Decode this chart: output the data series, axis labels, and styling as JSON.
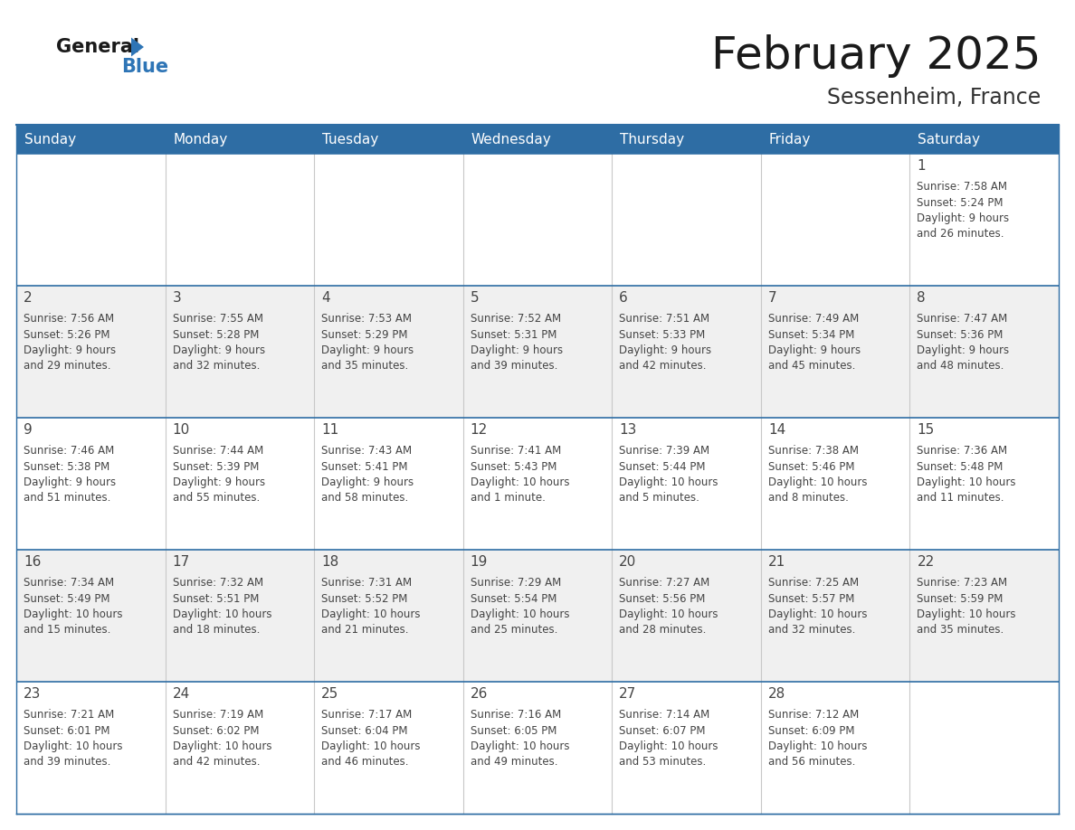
{
  "title": "February 2025",
  "subtitle": "Sessenheim, France",
  "header_bg": "#2E6DA4",
  "header_text_color": "#FFFFFF",
  "cell_bg_white": "#FFFFFF",
  "cell_bg_light": "#F0F0F0",
  "page_bg": "#FFFFFF",
  "border_color": "#2E6DA4",
  "cell_line_color": "#AAAAAA",
  "text_color": "#444444",
  "days_of_week": [
    "Sunday",
    "Monday",
    "Tuesday",
    "Wednesday",
    "Thursday",
    "Friday",
    "Saturday"
  ],
  "logo_general_color": "#1a1a1a",
  "logo_blue_color": "#2E75B6",
  "calendar_data": [
    [
      {
        "day": null,
        "info": null
      },
      {
        "day": null,
        "info": null
      },
      {
        "day": null,
        "info": null
      },
      {
        "day": null,
        "info": null
      },
      {
        "day": null,
        "info": null
      },
      {
        "day": null,
        "info": null
      },
      {
        "day": 1,
        "info": "Sunrise: 7:58 AM\nSunset: 5:24 PM\nDaylight: 9 hours\nand 26 minutes."
      }
    ],
    [
      {
        "day": 2,
        "info": "Sunrise: 7:56 AM\nSunset: 5:26 PM\nDaylight: 9 hours\nand 29 minutes."
      },
      {
        "day": 3,
        "info": "Sunrise: 7:55 AM\nSunset: 5:28 PM\nDaylight: 9 hours\nand 32 minutes."
      },
      {
        "day": 4,
        "info": "Sunrise: 7:53 AM\nSunset: 5:29 PM\nDaylight: 9 hours\nand 35 minutes."
      },
      {
        "day": 5,
        "info": "Sunrise: 7:52 AM\nSunset: 5:31 PM\nDaylight: 9 hours\nand 39 minutes."
      },
      {
        "day": 6,
        "info": "Sunrise: 7:51 AM\nSunset: 5:33 PM\nDaylight: 9 hours\nand 42 minutes."
      },
      {
        "day": 7,
        "info": "Sunrise: 7:49 AM\nSunset: 5:34 PM\nDaylight: 9 hours\nand 45 minutes."
      },
      {
        "day": 8,
        "info": "Sunrise: 7:47 AM\nSunset: 5:36 PM\nDaylight: 9 hours\nand 48 minutes."
      }
    ],
    [
      {
        "day": 9,
        "info": "Sunrise: 7:46 AM\nSunset: 5:38 PM\nDaylight: 9 hours\nand 51 minutes."
      },
      {
        "day": 10,
        "info": "Sunrise: 7:44 AM\nSunset: 5:39 PM\nDaylight: 9 hours\nand 55 minutes."
      },
      {
        "day": 11,
        "info": "Sunrise: 7:43 AM\nSunset: 5:41 PM\nDaylight: 9 hours\nand 58 minutes."
      },
      {
        "day": 12,
        "info": "Sunrise: 7:41 AM\nSunset: 5:43 PM\nDaylight: 10 hours\nand 1 minute."
      },
      {
        "day": 13,
        "info": "Sunrise: 7:39 AM\nSunset: 5:44 PM\nDaylight: 10 hours\nand 5 minutes."
      },
      {
        "day": 14,
        "info": "Sunrise: 7:38 AM\nSunset: 5:46 PM\nDaylight: 10 hours\nand 8 minutes."
      },
      {
        "day": 15,
        "info": "Sunrise: 7:36 AM\nSunset: 5:48 PM\nDaylight: 10 hours\nand 11 minutes."
      }
    ],
    [
      {
        "day": 16,
        "info": "Sunrise: 7:34 AM\nSunset: 5:49 PM\nDaylight: 10 hours\nand 15 minutes."
      },
      {
        "day": 17,
        "info": "Sunrise: 7:32 AM\nSunset: 5:51 PM\nDaylight: 10 hours\nand 18 minutes."
      },
      {
        "day": 18,
        "info": "Sunrise: 7:31 AM\nSunset: 5:52 PM\nDaylight: 10 hours\nand 21 minutes."
      },
      {
        "day": 19,
        "info": "Sunrise: 7:29 AM\nSunset: 5:54 PM\nDaylight: 10 hours\nand 25 minutes."
      },
      {
        "day": 20,
        "info": "Sunrise: 7:27 AM\nSunset: 5:56 PM\nDaylight: 10 hours\nand 28 minutes."
      },
      {
        "day": 21,
        "info": "Sunrise: 7:25 AM\nSunset: 5:57 PM\nDaylight: 10 hours\nand 32 minutes."
      },
      {
        "day": 22,
        "info": "Sunrise: 7:23 AM\nSunset: 5:59 PM\nDaylight: 10 hours\nand 35 minutes."
      }
    ],
    [
      {
        "day": 23,
        "info": "Sunrise: 7:21 AM\nSunset: 6:01 PM\nDaylight: 10 hours\nand 39 minutes."
      },
      {
        "day": 24,
        "info": "Sunrise: 7:19 AM\nSunset: 6:02 PM\nDaylight: 10 hours\nand 42 minutes."
      },
      {
        "day": 25,
        "info": "Sunrise: 7:17 AM\nSunset: 6:04 PM\nDaylight: 10 hours\nand 46 minutes."
      },
      {
        "day": 26,
        "info": "Sunrise: 7:16 AM\nSunset: 6:05 PM\nDaylight: 10 hours\nand 49 minutes."
      },
      {
        "day": 27,
        "info": "Sunrise: 7:14 AM\nSunset: 6:07 PM\nDaylight: 10 hours\nand 53 minutes."
      },
      {
        "day": 28,
        "info": "Sunrise: 7:12 AM\nSunset: 6:09 PM\nDaylight: 10 hours\nand 56 minutes."
      },
      {
        "day": null,
        "info": null
      }
    ]
  ]
}
